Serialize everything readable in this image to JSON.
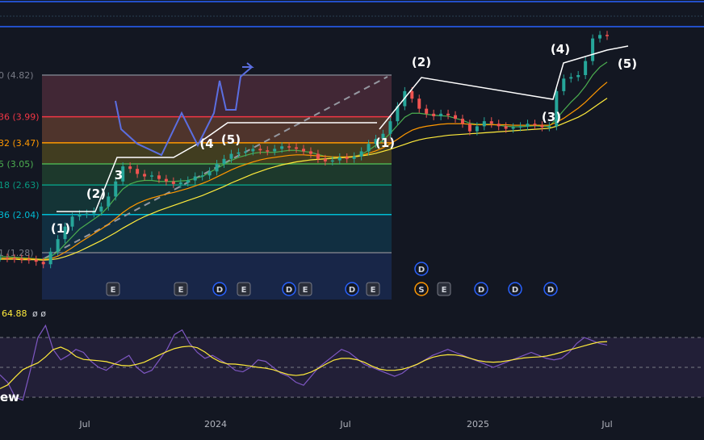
{
  "chart_data": {
    "type": "line",
    "series": [
      {
        "values": [
          1.18,
          1.17,
          1.16,
          1.15,
          1.14,
          1.1,
          1.05,
          1.3,
          1.55,
          1.8,
          2.0,
          2.05,
          2.06,
          2.1,
          2.2,
          2.4,
          2.7,
          3.0,
          2.95,
          2.85,
          2.8,
          2.82,
          2.75,
          2.7,
          2.65,
          2.68,
          2.72,
          2.8,
          2.82,
          2.9,
          3.05,
          3.15,
          3.25,
          3.28,
          3.3,
          3.35,
          3.32,
          3.3,
          3.35,
          3.4,
          3.38,
          3.35,
          3.3,
          3.25,
          3.15,
          3.1,
          3.12,
          3.18,
          3.15,
          3.2,
          3.3,
          3.45,
          3.55,
          3.65,
          3.9,
          4.2,
          4.5,
          4.35,
          4.15,
          4.05,
          4.0,
          4.05,
          4.02,
          3.95,
          3.85,
          3.7,
          3.8,
          3.9,
          3.85,
          3.8,
          3.75,
          3.78,
          3.8,
          3.85,
          3.82,
          3.78,
          3.8,
          4.5,
          4.75,
          4.78,
          4.82,
          5.1,
          5.55,
          5.62,
          5.6
        ]
      },
      {
        "values": [
          1.2,
          1.2,
          1.19,
          1.18,
          1.17,
          1.16,
          1.15,
          1.2,
          1.3,
          1.45,
          1.6,
          1.75,
          1.85,
          1.95,
          2.05,
          2.2,
          2.38,
          2.55,
          2.65,
          2.7,
          2.72,
          2.72,
          2.7,
          2.7,
          2.7,
          2.71,
          2.72,
          2.76,
          2.8,
          2.88,
          2.96,
          3.04,
          3.12,
          3.18,
          3.22,
          3.26,
          3.28,
          3.28,
          3.28,
          3.3,
          3.32,
          3.32,
          3.3,
          3.28,
          3.24,
          3.2,
          3.18,
          3.18,
          3.18,
          3.2,
          3.24,
          3.32,
          3.42,
          3.52,
          3.66,
          3.82,
          3.98,
          4.06,
          4.06,
          4.04,
          4.02,
          4.01,
          4.0,
          3.96,
          3.92,
          3.86,
          3.84,
          3.84,
          3.84,
          3.82,
          3.8,
          3.79,
          3.79,
          3.8,
          3.81,
          3.8,
          3.8,
          3.95,
          4.12,
          4.28,
          4.42,
          4.6,
          4.82,
          4.98,
          5.08
        ]
      },
      {
        "values": [
          1.17,
          1.17,
          1.17,
          1.16,
          1.16,
          1.15,
          1.14,
          1.16,
          1.21,
          1.29,
          1.38,
          1.48,
          1.57,
          1.66,
          1.75,
          1.85,
          1.96,
          2.08,
          2.18,
          2.26,
          2.32,
          2.37,
          2.41,
          2.45,
          2.48,
          2.52,
          2.56,
          2.61,
          2.66,
          2.72,
          2.79,
          2.86,
          2.93,
          2.99,
          3.04,
          3.09,
          3.13,
          3.16,
          3.18,
          3.2,
          3.22,
          3.23,
          3.23,
          3.22,
          3.21,
          3.2,
          3.19,
          3.19,
          3.19,
          3.2,
          3.22,
          3.26,
          3.31,
          3.37,
          3.45,
          3.54,
          3.64,
          3.72,
          3.77,
          3.8,
          3.82,
          3.84,
          3.85,
          3.85,
          3.85,
          3.84,
          3.83,
          3.83,
          3.83,
          3.83,
          3.83,
          3.82,
          3.82,
          3.82,
          3.82,
          3.82,
          3.82,
          3.88,
          3.96,
          4.06,
          4.16,
          4.28,
          4.42,
          4.56,
          4.68
        ]
      },
      {
        "values": [
          1.15,
          1.15,
          1.15,
          1.14,
          1.14,
          1.14,
          1.13,
          1.14,
          1.16,
          1.2,
          1.25,
          1.31,
          1.38,
          1.45,
          1.52,
          1.6,
          1.68,
          1.77,
          1.85,
          1.93,
          2.0,
          2.06,
          2.12,
          2.17,
          2.22,
          2.27,
          2.32,
          2.37,
          2.42,
          2.48,
          2.54,
          2.6,
          2.67,
          2.73,
          2.79,
          2.85,
          2.9,
          2.95,
          2.99,
          3.03,
          3.06,
          3.09,
          3.11,
          3.13,
          3.14,
          3.15,
          3.16,
          3.17,
          3.18,
          3.19,
          3.21,
          3.23,
          3.26,
          3.3,
          3.34,
          3.39,
          3.44,
          3.49,
          3.53,
          3.56,
          3.58,
          3.6,
          3.62,
          3.63,
          3.64,
          3.65,
          3.66,
          3.67,
          3.68,
          3.69,
          3.7,
          3.71,
          3.72,
          3.73,
          3.74,
          3.75,
          3.76,
          3.8,
          3.86,
          3.92,
          3.98,
          4.06,
          4.16,
          4.26,
          4.36
        ]
      }
    ],
    "ylim": [
      0.9,
      5.8
    ],
    "fib_levels": [
      {
        "label": "0 (4.82)",
        "value": 4.82,
        "color": "#787b86"
      },
      {
        "label": "36 (3.99)",
        "value": 3.99,
        "color": "#f23645"
      },
      {
        "label": "32 (3.47)",
        "value": 3.47,
        "color": "#ff9800"
      },
      {
        "label": "5 (3.05)",
        "value": 3.05,
        "color": "#4caf50"
      },
      {
        "label": "18 (2.63)",
        "value": 2.63,
        "color": "#089981"
      },
      {
        "label": "36 (2.04)",
        "value": 2.04,
        "color": "#00bcd4"
      },
      {
        "label": "1 (1.28)",
        "value": 1.28,
        "color": "#787b86"
      }
    ],
    "waves": [
      "(1)",
      "(2)",
      "3",
      "(4",
      "(5)",
      "(1)",
      "(2)",
      "(3)",
      "(4)",
      "(5)"
    ],
    "x_ticks": [
      "Jul",
      "2024",
      "Jul",
      "2025",
      "Jul"
    ],
    "rsi": {
      "value_text": "64.88",
      "suffix": "ø ø",
      "values": [
        45,
        40,
        30,
        28,
        48,
        70,
        78,
        62,
        55,
        58,
        62,
        60,
        54,
        50,
        48,
        52,
        55,
        58,
        50,
        46,
        48,
        55,
        62,
        72,
        75,
        66,
        60,
        56,
        58,
        55,
        52,
        48,
        47,
        50,
        55,
        54,
        50,
        46,
        44,
        40,
        38,
        44,
        50,
        54,
        58,
        62,
        60,
        56,
        52,
        50,
        48,
        46,
        44,
        46,
        50,
        52,
        55,
        58,
        60,
        62,
        60,
        58,
        56,
        54,
        52,
        50,
        52,
        54,
        56,
        58,
        60,
        58,
        56,
        55,
        56,
        60,
        66,
        70,
        68,
        66,
        64.88
      ]
    },
    "events": [
      "E",
      "E",
      "D",
      "E",
      "D",
      "E",
      "D",
      "E",
      "D",
      "S",
      "E",
      "D",
      "D",
      "D"
    ],
    "watermark_fragment": "ew"
  }
}
